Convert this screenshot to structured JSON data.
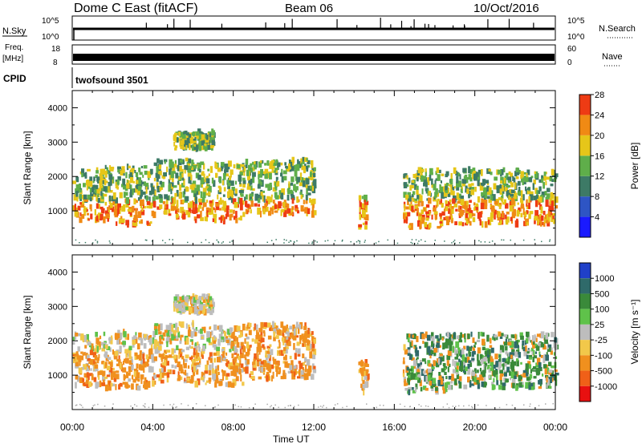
{
  "header": {
    "station": "Dome C East (fitACF)",
    "beam": "Beam 06",
    "date": "10/Oct/2016"
  },
  "strips": {
    "nsky": {
      "label": "N.Sky",
      "top_tick": "10^5",
      "bottom_tick": "10^0"
    },
    "nsearch": {
      "label": "N.Search",
      "top_tick": "10^5",
      "bottom_tick": "10^0"
    },
    "freq": {
      "label_line1": "Freq.",
      "label_line2": "[MHz]",
      "top_tick": "18",
      "bottom_tick": "8"
    },
    "nave": {
      "label": "Nave",
      "top_tick": "60",
      "bottom_tick": "0"
    },
    "cpid": {
      "label": "CPID",
      "value": "twofsound 3501"
    }
  },
  "chart_data": [
    {
      "type": "heatmap",
      "panel": "power",
      "ylabel": "Slant Range [km]",
      "ylim": [
        0,
        4500
      ],
      "y_ticks": [
        "1000",
        "2000",
        "3000",
        "4000"
      ],
      "xlim_hours": [
        0,
        24
      ],
      "x_tick_labels": [
        "00:00",
        "04:00",
        "08:00",
        "12:00",
        "16:00",
        "20:00",
        "00:00"
      ],
      "colorbar": {
        "label": "Power [dB]",
        "ticks": [
          "4",
          "8",
          "12",
          "16",
          "20",
          "24",
          "28"
        ],
        "colors": [
          "#1a1aff",
          "#2e55c4",
          "#3d7a66",
          "#5fae4a",
          "#e6c619",
          "#f08a14",
          "#ee3b14"
        ]
      },
      "echo_regions": [
        {
          "t_start": 0.0,
          "t_end": 1.5,
          "r_min": 700,
          "r_max": 2200
        },
        {
          "t_start": 1.5,
          "t_end": 4.0,
          "r_min": 600,
          "r_max": 2300
        },
        {
          "t_start": 4.0,
          "t_end": 6.0,
          "r_min": 800,
          "r_max": 2500
        },
        {
          "t_start": 5.0,
          "t_end": 7.0,
          "r_min": 2800,
          "r_max": 3300
        },
        {
          "t_start": 6.0,
          "t_end": 8.5,
          "r_min": 700,
          "r_max": 2400
        },
        {
          "t_start": 8.5,
          "t_end": 12.0,
          "r_min": 900,
          "r_max": 2500
        },
        {
          "t_start": 14.2,
          "t_end": 14.6,
          "r_min": 500,
          "r_max": 1400
        },
        {
          "t_start": 16.4,
          "t_end": 18.5,
          "r_min": 500,
          "r_max": 2200
        },
        {
          "t_start": 18.5,
          "t_end": 24.0,
          "r_min": 600,
          "r_max": 2200
        }
      ]
    },
    {
      "type": "heatmap",
      "panel": "velocity",
      "ylabel": "Slant Range [km]",
      "xlabel": "Time UT",
      "ylim": [
        0,
        4500
      ],
      "y_ticks": [
        "1000",
        "2000",
        "3000",
        "4000"
      ],
      "xlim_hours": [
        0,
        24
      ],
      "x_tick_labels": [
        "00:00",
        "04:00",
        "08:00",
        "12:00",
        "16:00",
        "20:00",
        "00:00"
      ],
      "colorbar": {
        "label": "Velocity [m s⁻¹]",
        "ticks": [
          "1000",
          "500",
          "100",
          "25",
          "-25",
          "-100",
          "-500",
          "-1000"
        ],
        "colors": [
          "#2040c8",
          "#2f6a6a",
          "#3a8a3a",
          "#5fc24a",
          "#bdbdbd",
          "#f2c84a",
          "#f0901e",
          "#f06018",
          "#e81010"
        ]
      },
      "echo_regions": [
        {
          "t_start": 0.0,
          "t_end": 1.5,
          "r_min": 700,
          "r_max": 2200
        },
        {
          "t_start": 1.5,
          "t_end": 4.0,
          "r_min": 600,
          "r_max": 2300
        },
        {
          "t_start": 4.0,
          "t_end": 6.0,
          "r_min": 800,
          "r_max": 2500
        },
        {
          "t_start": 5.0,
          "t_end": 7.0,
          "r_min": 2800,
          "r_max": 3300
        },
        {
          "t_start": 6.0,
          "t_end": 8.5,
          "r_min": 700,
          "r_max": 2400
        },
        {
          "t_start": 8.5,
          "t_end": 12.0,
          "r_min": 900,
          "r_max": 2500
        },
        {
          "t_start": 14.2,
          "t_end": 14.6,
          "r_min": 500,
          "r_max": 1400
        },
        {
          "t_start": 16.4,
          "t_end": 18.5,
          "r_min": 500,
          "r_max": 2200
        },
        {
          "t_start": 18.5,
          "t_end": 24.0,
          "r_min": 600,
          "r_max": 2200
        }
      ]
    }
  ]
}
